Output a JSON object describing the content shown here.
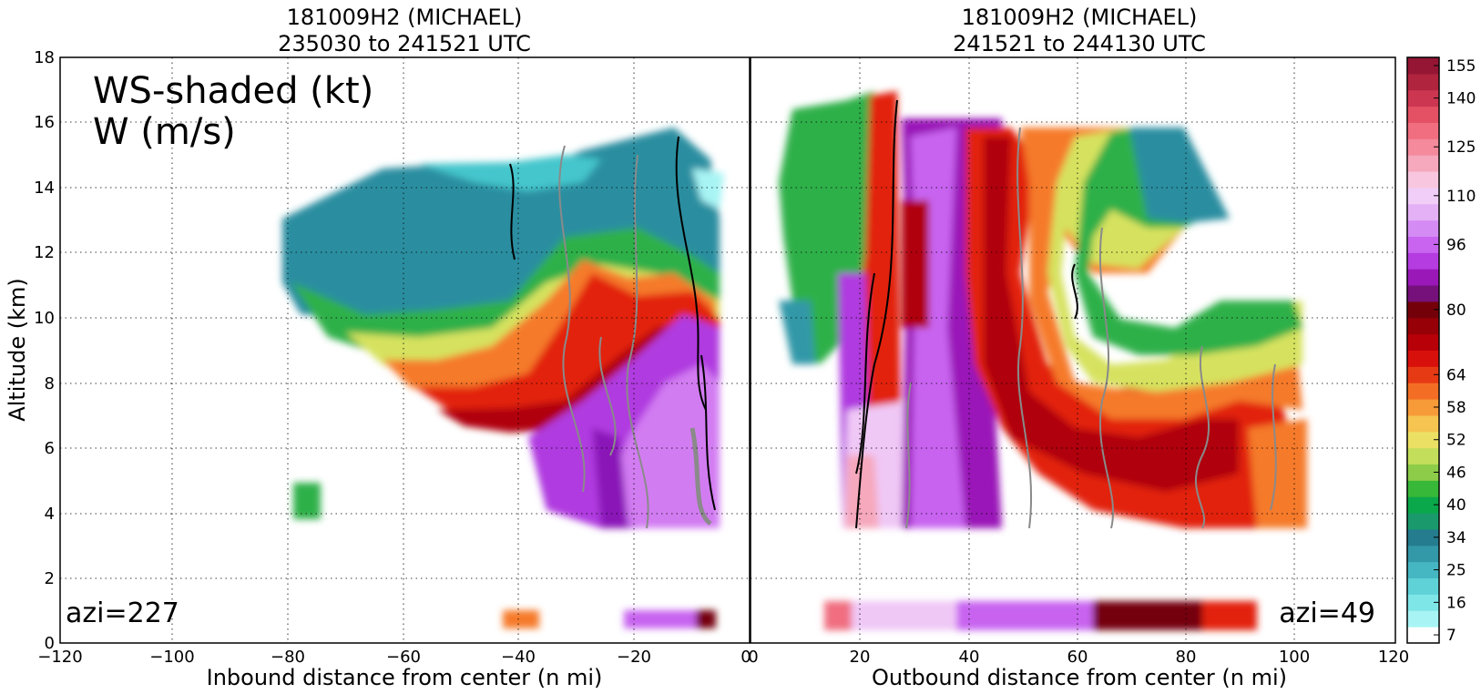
{
  "chart_data": [
    {
      "type": "heatmap",
      "panel": "left",
      "title": "181009H2 (MICHAEL)",
      "subtitle": "235030 to 241521 UTC",
      "xlabel": "Inbound distance from center (n mi)",
      "ylabel": "Altitude (km)",
      "xlim": [
        -120,
        0
      ],
      "ylim": [
        0,
        18
      ],
      "xticks": [
        "−120",
        "−100",
        "−80",
        "−60",
        "−40",
        "−20",
        "0"
      ],
      "yticks": [
        "0",
        "2",
        "4",
        "6",
        "8",
        "10",
        "12",
        "14",
        "16",
        "18"
      ],
      "annotation_main": [
        "WS-shaded (kt)",
        "W (m/s)"
      ],
      "azimuth_label": "azi=227",
      "grid": true,
      "shading_variable": "WS (kt)",
      "contour_variable": "W (m/s)"
    },
    {
      "type": "heatmap",
      "panel": "right",
      "title": "181009H2 (MICHAEL)",
      "subtitle": "241521 to 244130 UTC",
      "xlabel": "Outbound distance from center (n mi)",
      "xlim": [
        0,
        120
      ],
      "ylim": [
        0,
        18
      ],
      "xticks": [
        "0",
        "20",
        "40",
        "60",
        "80",
        "100",
        "120"
      ],
      "azimuth_label": "azi=49",
      "grid": true
    }
  ],
  "colorbar": {
    "label_ticks": [
      "7",
      "16",
      "25",
      "34",
      "40",
      "46",
      "52",
      "58",
      "64",
      "80",
      "96",
      "110",
      "125",
      "140",
      "155"
    ],
    "colors": [
      "#ffffff",
      "#a8f4f4",
      "#7fe6e8",
      "#5fd2d8",
      "#45b7c2",
      "#3398a8",
      "#247c8e",
      "#1a9a6c",
      "#0aa84a",
      "#38b838",
      "#8ccc48",
      "#c2de5a",
      "#ece064",
      "#f6c450",
      "#f79a38",
      "#f36e24",
      "#e63a14",
      "#d8100c",
      "#b80008",
      "#960006",
      "#74000a",
      "#76107a",
      "#9a18b8",
      "#b43ce0",
      "#c864f0",
      "#d48cf4",
      "#e4b0f6",
      "#f0cef8",
      "#f8c6de",
      "#f6a8bc",
      "#f48a9c",
      "#f06e80",
      "#e45064",
      "#cc3650",
      "#b0243e",
      "#941634"
    ],
    "tick_label_positions": [
      0,
      2,
      4,
      6,
      8,
      10,
      12,
      14,
      16,
      20,
      24,
      27,
      30,
      33,
      35
    ]
  }
}
